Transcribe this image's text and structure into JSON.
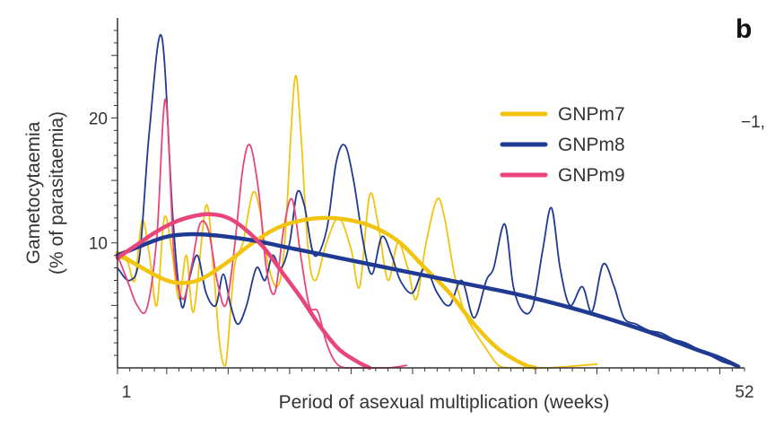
{
  "panel_label": "b",
  "edge_fragment": "−1,",
  "colors": {
    "GNPm7": "#f1c40f",
    "GNPm8": "#1f3a93",
    "GNPm9": "#e8457a",
    "axis": "#333333"
  },
  "chart_data": {
    "type": "line",
    "title": "",
    "xlabel": "Period of asexual multiplication (weeks)",
    "ylabel_line1": "Gametocytaemia",
    "ylabel_line2": "(% of parasitaemia)",
    "xlim": [
      1,
      52
    ],
    "ylim": [
      0,
      28
    ],
    "x_tick_labels": [
      {
        "value": 1,
        "label": "1"
      },
      {
        "value": 52,
        "label": "52"
      }
    ],
    "y_tick_labels": [
      {
        "value": 10,
        "label": "10"
      },
      {
        "value": 20,
        "label": "20"
      }
    ],
    "legend": {
      "position": "top-right",
      "entries": [
        {
          "name": "GNPm7",
          "color": "#f1c40f"
        },
        {
          "name": "GNPm8",
          "color": "#1f3a93"
        },
        {
          "name": "GNPm9",
          "color": "#e8457a"
        }
      ]
    },
    "series": [
      {
        "name": "GNPm7",
        "kind": "raw",
        "color": "#f1c40f",
        "points": [
          [
            1,
            8.8
          ],
          [
            1.8,
            8.5
          ],
          [
            2.4,
            7.0
          ],
          [
            3.0,
            11.8
          ],
          [
            3.6,
            9.0
          ],
          [
            4.2,
            5.0
          ],
          [
            4.8,
            12.0
          ],
          [
            5.4,
            9.5
          ],
          [
            6.0,
            5.5
          ],
          [
            6.6,
            9.0
          ],
          [
            7.2,
            4.5
          ],
          [
            8.2,
            13.0
          ],
          [
            8.8,
            8.0
          ],
          [
            9.3,
            2.0
          ],
          [
            9.8,
            0.2
          ],
          [
            10.5,
            8.0
          ],
          [
            11.2,
            10.0
          ],
          [
            12.0,
            14.0
          ],
          [
            12.6,
            12.5
          ],
          [
            13.2,
            8.5
          ],
          [
            14.0,
            6.5
          ],
          [
            14.6,
            10.0
          ],
          [
            15.4,
            23.0
          ],
          [
            15.9,
            19.0
          ],
          [
            16.5,
            9.5
          ],
          [
            17.1,
            7.0
          ],
          [
            18.0,
            10.0
          ],
          [
            19.0,
            12.0
          ],
          [
            20.0,
            9.5
          ],
          [
            20.7,
            6.5
          ],
          [
            21.5,
            13.8
          ],
          [
            22.2,
            11.5
          ],
          [
            23.0,
            7.0
          ],
          [
            23.8,
            10.0
          ],
          [
            24.6,
            8.0
          ],
          [
            25.3,
            5.5
          ],
          [
            26.1,
            10.0
          ],
          [
            27.0,
            13.5
          ],
          [
            27.6,
            12.0
          ],
          [
            28.4,
            7.5
          ],
          [
            29.2,
            4.5
          ],
          [
            30.0,
            3.0
          ],
          [
            31.0,
            1.5
          ],
          [
            32.0,
            0.2
          ],
          [
            33.0,
            0.0
          ],
          [
            36.0,
            0.0
          ],
          [
            40.0,
            0.3
          ]
        ]
      },
      {
        "name": "GNPm7",
        "kind": "fit",
        "color": "#f1c40f",
        "points": [
          [
            1,
            9.2
          ],
          [
            3,
            8.0
          ],
          [
            5,
            7.0
          ],
          [
            6.5,
            6.8
          ],
          [
            8,
            7.2
          ],
          [
            10,
            8.5
          ],
          [
            12,
            10.0
          ],
          [
            14,
            11.2
          ],
          [
            16,
            11.8
          ],
          [
            18,
            12.0
          ],
          [
            20,
            11.8
          ],
          [
            22,
            11.2
          ],
          [
            24,
            10.0
          ],
          [
            26,
            8.0
          ],
          [
            28,
            6.0
          ],
          [
            30,
            3.5
          ],
          [
            32,
            1.5
          ],
          [
            34,
            0.3
          ],
          [
            35,
            0.0
          ]
        ]
      },
      {
        "name": "GNPm8",
        "kind": "raw",
        "color": "#1f3a93",
        "points": [
          [
            1,
            8.0
          ],
          [
            2,
            7.0
          ],
          [
            2.8,
            9.0
          ],
          [
            3.6,
            19.0
          ],
          [
            4.6,
            26.5
          ],
          [
            5.5,
            12.0
          ],
          [
            6.2,
            5.0
          ],
          [
            6.8,
            7.0
          ],
          [
            7.5,
            9.0
          ],
          [
            8.2,
            6.0
          ],
          [
            9.0,
            5.0
          ],
          [
            9.6,
            7.5
          ],
          [
            10.2,
            5.0
          ],
          [
            10.8,
            3.5
          ],
          [
            11.5,
            5.0
          ],
          [
            12.3,
            8.0
          ],
          [
            13.0,
            7.0
          ],
          [
            13.6,
            9.0
          ],
          [
            14.3,
            8.0
          ],
          [
            15.0,
            10.0
          ],
          [
            15.6,
            14.0
          ],
          [
            16.2,
            13.0
          ],
          [
            17.0,
            9.0
          ],
          [
            18.0,
            11.0
          ],
          [
            18.8,
            16.5
          ],
          [
            19.5,
            17.8
          ],
          [
            20.2,
            15.0
          ],
          [
            21.0,
            10.0
          ],
          [
            21.7,
            7.5
          ],
          [
            22.5,
            10.5
          ],
          [
            23.3,
            9.0
          ],
          [
            24.0,
            7.0
          ],
          [
            25.0,
            6.0
          ],
          [
            26.0,
            8.0
          ],
          [
            27.0,
            6.0
          ],
          [
            28.0,
            5.0
          ],
          [
            29.0,
            7.0
          ],
          [
            30.0,
            4.0
          ],
          [
            31.0,
            7.0
          ],
          [
            31.6,
            8.0
          ],
          [
            32.5,
            11.5
          ],
          [
            33.2,
            6.5
          ],
          [
            34.0,
            4.5
          ],
          [
            34.8,
            5.0
          ],
          [
            35.6,
            9.5
          ],
          [
            36.3,
            12.8
          ],
          [
            37.0,
            8.0
          ],
          [
            37.8,
            5.0
          ],
          [
            38.8,
            6.5
          ],
          [
            39.6,
            4.5
          ],
          [
            40.5,
            8.3
          ],
          [
            41.4,
            6.5
          ],
          [
            42.2,
            4.0
          ],
          [
            43.2,
            3.5
          ],
          [
            44.2,
            3.0
          ],
          [
            45.2,
            2.8
          ],
          [
            46.2,
            2.3
          ],
          [
            47.2,
            2.0
          ],
          [
            48.2,
            1.5
          ],
          [
            49.2,
            1.0
          ],
          [
            50.2,
            0.5
          ],
          [
            51.2,
            0.2
          ]
        ]
      },
      {
        "name": "GNPm8",
        "kind": "fit",
        "color": "#1f3a93",
        "points": [
          [
            1,
            9.0
          ],
          [
            3,
            9.8
          ],
          [
            5,
            10.5
          ],
          [
            7,
            10.7
          ],
          [
            9,
            10.6
          ],
          [
            12,
            10.2
          ],
          [
            15,
            9.6
          ],
          [
            18,
            9.0
          ],
          [
            21,
            8.4
          ],
          [
            24,
            7.8
          ],
          [
            27,
            7.2
          ],
          [
            30,
            6.6
          ],
          [
            33,
            6.0
          ],
          [
            36,
            5.3
          ],
          [
            39,
            4.5
          ],
          [
            42,
            3.6
          ],
          [
            45,
            2.6
          ],
          [
            48,
            1.5
          ],
          [
            50,
            0.8
          ],
          [
            51.5,
            0.1
          ]
        ]
      },
      {
        "name": "GNPm9",
        "kind": "raw",
        "color": "#e8457a",
        "points": [
          [
            1,
            9.0
          ],
          [
            1.8,
            7.0
          ],
          [
            2.6,
            5.0
          ],
          [
            3.4,
            4.8
          ],
          [
            4.2,
            10.5
          ],
          [
            4.9,
            21.5
          ],
          [
            5.6,
            9.0
          ],
          [
            6.3,
            5.5
          ],
          [
            7.0,
            8.0
          ],
          [
            7.7,
            11.5
          ],
          [
            8.4,
            11.0
          ],
          [
            9.1,
            7.0
          ],
          [
            9.8,
            5.0
          ],
          [
            10.5,
            9.5
          ],
          [
            11.2,
            16.0
          ],
          [
            11.8,
            17.8
          ],
          [
            12.5,
            14.0
          ],
          [
            13.1,
            8.0
          ],
          [
            13.8,
            6.0
          ],
          [
            14.5,
            11.0
          ],
          [
            15.2,
            13.5
          ],
          [
            15.9,
            9.0
          ],
          [
            16.6,
            5.0
          ],
          [
            17.3,
            4.5
          ],
          [
            18.0,
            2.0
          ],
          [
            18.7,
            0.5
          ],
          [
            19.5,
            0.0
          ],
          [
            21.0,
            0.0
          ],
          [
            23.0,
            0.0
          ],
          [
            24.5,
            0.2
          ]
        ]
      },
      {
        "name": "GNPm9",
        "kind": "fit",
        "color": "#e8457a",
        "points": [
          [
            1,
            8.8
          ],
          [
            2.5,
            9.8
          ],
          [
            4,
            10.8
          ],
          [
            5.5,
            11.6
          ],
          [
            7,
            12.1
          ],
          [
            8.5,
            12.3
          ],
          [
            10,
            12.0
          ],
          [
            11.5,
            11.0
          ],
          [
            13,
            9.5
          ],
          [
            14.5,
            7.5
          ],
          [
            16,
            5.5
          ],
          [
            17.5,
            3.3
          ],
          [
            19,
            1.5
          ],
          [
            20.5,
            0.5
          ],
          [
            21.5,
            0.0
          ]
        ]
      }
    ]
  }
}
